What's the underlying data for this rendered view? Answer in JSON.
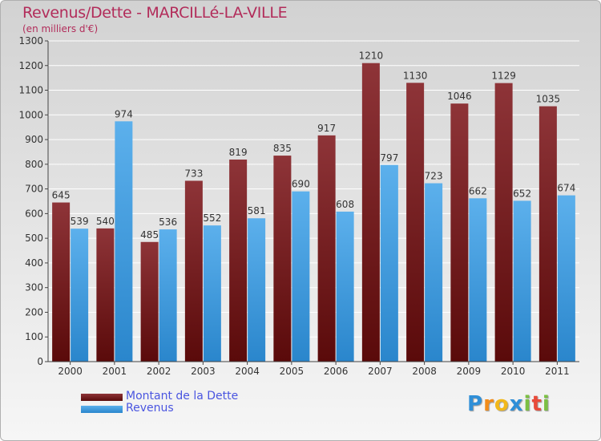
{
  "title": "Revenus/Dette - MARCILLé-LA-VILLE",
  "subtitle": "(en milliers d'€)",
  "colors": {
    "debt_top": "#8e3438",
    "debt_bottom": "#5a0a0a",
    "revenue_top": "#5cb0ec",
    "revenue_bottom": "#2a86cc",
    "grid": "#ffffff",
    "axis": "#444444",
    "title": "#b22c5a",
    "legend_text": "#4a55e0"
  },
  "logo": {
    "letters": [
      "P",
      "r",
      "o",
      "x",
      "i",
      "t",
      "i"
    ],
    "letter_colors": [
      "#2f8fd8",
      "#f28c1a",
      "#f2b81a",
      "#2f8fd8",
      "#7cc043",
      "#e94a3a",
      "#7cc043"
    ],
    "icon": "proxiti-logo"
  },
  "chart_data": {
    "type": "bar",
    "categories": [
      "2000",
      "2001",
      "2002",
      "2003",
      "2004",
      "2005",
      "2006",
      "2007",
      "2008",
      "2009",
      "2010",
      "2011"
    ],
    "series": [
      {
        "name": "Montant de la Dette",
        "values": [
          645,
          540,
          485,
          733,
          819,
          835,
          917,
          1210,
          1130,
          1046,
          1129,
          1035
        ]
      },
      {
        "name": "Revenus",
        "values": [
          539,
          974,
          536,
          552,
          581,
          690,
          608,
          797,
          723,
          662,
          652,
          674
        ]
      }
    ],
    "ylim": [
      0,
      1300
    ],
    "yticks": [
      0,
      100,
      200,
      300,
      400,
      500,
      600,
      700,
      800,
      900,
      1000,
      1100,
      1200,
      1300
    ],
    "grid": true,
    "legend_position": "bottom-left",
    "data_labels": true
  }
}
